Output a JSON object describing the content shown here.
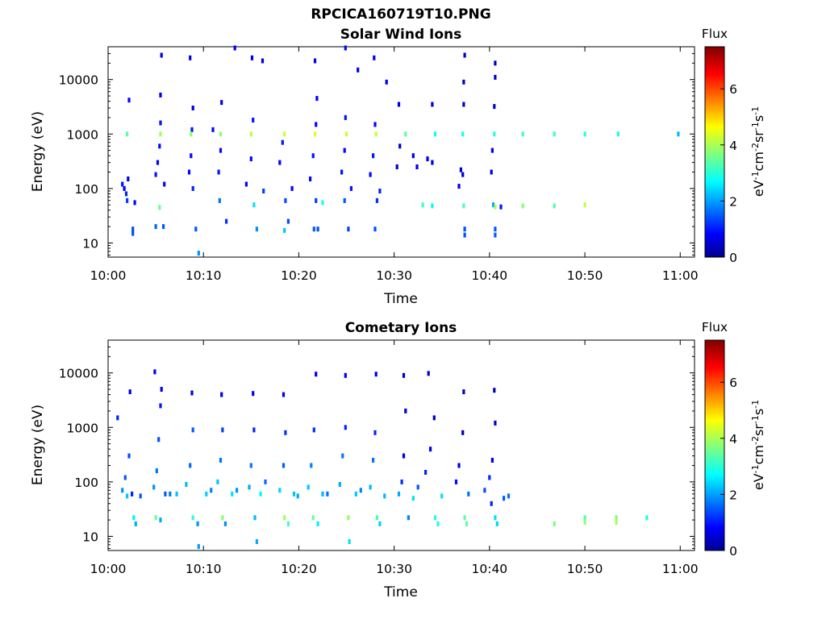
{
  "figure_title": "RPCICA160719T10.PNG",
  "chart_data": [
    {
      "type": "heatmap",
      "title": "Solar Wind Ions",
      "xlabel": "Time",
      "ylabel": "Energy (eV)",
      "x_tick_labels": [
        "10:00",
        "10:10",
        "10:20",
        "10:30",
        "10:40",
        "10:50",
        "11:00"
      ],
      "x_ticks_minutes": [
        0,
        10,
        20,
        30,
        40,
        50,
        60
      ],
      "xlim_minutes": [
        0,
        61.5
      ],
      "y_scale": "log",
      "ylim": [
        5.5,
        40000
      ],
      "y_tick_labels": [
        "10",
        "100",
        "1000",
        "10000"
      ],
      "y_ticks": [
        10,
        100,
        1000,
        10000
      ],
      "colorbar": {
        "label": "Flux",
        "units_text": "eV-1cm-2sr-1s-1",
        "range": [
          0,
          7.5
        ],
        "ticks": [
          0,
          2,
          4,
          6
        ],
        "tick_labels": [
          "0",
          "2",
          "4",
          "6"
        ],
        "colormap": "jet"
      },
      "cells": [
        [
          1.5,
          120,
          1.1
        ],
        [
          1.7,
          100,
          0.9
        ],
        [
          1.9,
          80,
          1.2
        ],
        [
          2.1,
          150,
          0.8
        ],
        [
          2.2,
          4200,
          1.0
        ],
        [
          2.0,
          1000,
          3.5
        ],
        [
          2.0,
          60,
          1.4
        ],
        [
          2.6,
          18,
          1.5
        ],
        [
          2.6,
          15,
          1.5
        ],
        [
          2.8,
          55,
          1.0
        ],
        [
          5.0,
          180,
          1.1
        ],
        [
          5.2,
          300,
          0.9
        ],
        [
          5.4,
          600,
          1.0
        ],
        [
          5.5,
          1600,
          1.1
        ],
        [
          5.5,
          5200,
          0.8
        ],
        [
          5.6,
          28000,
          0.7
        ],
        [
          5.5,
          1000,
          4.0
        ],
        [
          5.4,
          45,
          3.6
        ],
        [
          5.8,
          20,
          1.6
        ],
        [
          5.0,
          20,
          1.7
        ],
        [
          5.9,
          120,
          1.0
        ],
        [
          8.5,
          200,
          1.0
        ],
        [
          8.7,
          400,
          1.0
        ],
        [
          8.8,
          1200,
          1.1
        ],
        [
          8.9,
          3000,
          0.8
        ],
        [
          8.6,
          25000,
          0.7
        ],
        [
          8.7,
          1000,
          3.8
        ],
        [
          9.2,
          18,
          1.6
        ],
        [
          9.5,
          6.5,
          2.0
        ],
        [
          8.9,
          100,
          1.2
        ],
        [
          11.0,
          1200,
          1.0
        ],
        [
          11.6,
          200,
          1.1
        ],
        [
          11.8,
          500,
          1.0
        ],
        [
          11.9,
          3800,
          0.8
        ],
        [
          11.8,
          1000,
          3.9
        ],
        [
          11.7,
          60,
          1.8
        ],
        [
          12.4,
          25,
          1.3
        ],
        [
          13.3,
          38000,
          0.9
        ],
        [
          14.5,
          120,
          1.0
        ],
        [
          15.0,
          350,
          1.0
        ],
        [
          15.2,
          1800,
          1.1
        ],
        [
          15.1,
          25000,
          0.7
        ],
        [
          15.0,
          1000,
          4.2
        ],
        [
          15.3,
          50,
          2.6
        ],
        [
          15.6,
          18,
          2.0
        ],
        [
          16.2,
          22000,
          0.8
        ],
        [
          16.3,
          90,
          1.4
        ],
        [
          18.0,
          300,
          1.0
        ],
        [
          18.3,
          700,
          1.1
        ],
        [
          18.5,
          1000,
          4.3
        ],
        [
          18.6,
          60,
          1.5
        ],
        [
          18.9,
          25,
          1.5
        ],
        [
          18.5,
          17,
          2.4
        ],
        [
          19.3,
          100,
          1.0
        ],
        [
          21.2,
          150,
          1.0
        ],
        [
          21.5,
          400,
          1.1
        ],
        [
          21.8,
          1500,
          1.0
        ],
        [
          21.9,
          4500,
          0.9
        ],
        [
          21.7,
          1000,
          4.4
        ],
        [
          21.8,
          60,
          1.4
        ],
        [
          21.6,
          18,
          1.6
        ],
        [
          22.0,
          18,
          1.5
        ],
        [
          21.7,
          22000,
          0.8
        ],
        [
          22.5,
          55,
          3.0
        ],
        [
          24.5,
          200,
          1.1
        ],
        [
          24.8,
          500,
          1.0
        ],
        [
          24.9,
          2000,
          1.1
        ],
        [
          24.9,
          38000,
          1.0
        ],
        [
          25.0,
          1000,
          4.3
        ],
        [
          24.8,
          60,
          1.6
        ],
        [
          25.2,
          18,
          1.4
        ],
        [
          25.5,
          100,
          1.1
        ],
        [
          26.2,
          15000,
          0.8
        ],
        [
          27.5,
          180,
          1.0
        ],
        [
          27.8,
          400,
          1.1
        ],
        [
          28.0,
          1500,
          1.0
        ],
        [
          27.9,
          25000,
          0.9
        ],
        [
          28.1,
          1000,
          4.3
        ],
        [
          28.2,
          60,
          1.3
        ],
        [
          28.0,
          18,
          1.5
        ],
        [
          28.5,
          90,
          1.2
        ],
        [
          29.2,
          9000,
          0.7
        ],
        [
          30.3,
          250,
          0.7
        ],
        [
          30.6,
          600,
          0.6
        ],
        [
          30.5,
          3500,
          0.7
        ],
        [
          31.2,
          1000,
          3.5
        ],
        [
          32.0,
          400,
          0.7
        ],
        [
          32.4,
          250,
          0.8
        ],
        [
          33.5,
          350,
          0.9
        ],
        [
          34.0,
          300,
          0.8
        ],
        [
          34.0,
          3500,
          0.6
        ],
        [
          34.3,
          1000,
          2.9
        ],
        [
          34.0,
          48,
          2.8
        ],
        [
          33.0,
          50,
          3.2
        ],
        [
          37.0,
          220,
          0.5
        ],
        [
          37.2,
          180,
          0.6
        ],
        [
          36.8,
          110,
          0.9
        ],
        [
          37.3,
          3500,
          0.6
        ],
        [
          37.3,
          9000,
          0.5
        ],
        [
          37.4,
          28000,
          0.5
        ],
        [
          37.2,
          1000,
          3.0
        ],
        [
          37.3,
          48,
          3.4
        ],
        [
          37.4,
          18,
          1.5
        ],
        [
          37.4,
          14,
          1.5
        ],
        [
          40.2,
          200,
          0.7
        ],
        [
          40.3,
          500,
          0.9
        ],
        [
          40.5,
          3200,
          0.7
        ],
        [
          40.6,
          11000,
          0.6
        ],
        [
          40.6,
          20000,
          0.5
        ],
        [
          40.5,
          1000,
          3.1
        ],
        [
          40.4,
          50,
          2.1
        ],
        [
          40.6,
          46,
          4.0
        ],
        [
          41.2,
          46,
          1.1
        ],
        [
          40.6,
          18,
          1.6
        ],
        [
          40.6,
          14,
          1.6
        ],
        [
          43.5,
          1000,
          3.3
        ],
        [
          43.5,
          48,
          3.8
        ],
        [
          46.8,
          1000,
          3.3
        ],
        [
          46.8,
          48,
          3.4
        ],
        [
          50.0,
          1000,
          3.1
        ],
        [
          50.0,
          50,
          4.2
        ],
        [
          53.5,
          1000,
          3.0
        ],
        [
          59.8,
          1000,
          2.3
        ]
      ]
    },
    {
      "type": "heatmap",
      "title": "Cometary Ions",
      "xlabel": "Time",
      "ylabel": "Energy (eV)",
      "x_tick_labels": [
        "10:00",
        "10:10",
        "10:20",
        "10:30",
        "10:40",
        "10:50",
        "11:00"
      ],
      "x_ticks_minutes": [
        0,
        10,
        20,
        30,
        40,
        50,
        60
      ],
      "xlim_minutes": [
        0,
        61.5
      ],
      "y_scale": "log",
      "ylim": [
        5.5,
        40000
      ],
      "y_tick_labels": [
        "10",
        "100",
        "1000",
        "10000"
      ],
      "y_ticks": [
        10,
        100,
        1000,
        10000
      ],
      "colorbar": {
        "label": "Flux",
        "units_text": "eV-1cm-2sr-1s-1",
        "range": [
          0,
          7.5
        ],
        "ticks": [
          0,
          2,
          4,
          6
        ],
        "tick_labels": [
          "0",
          "2",
          "4",
          "6"
        ],
        "colormap": "jet"
      },
      "cells": [
        [
          1.0,
          1500,
          1.2
        ],
        [
          1.5,
          70,
          2.0
        ],
        [
          1.8,
          120,
          1.6
        ],
        [
          2.0,
          55,
          2.4
        ],
        [
          2.2,
          300,
          1.5
        ],
        [
          2.3,
          4500,
          0.8
        ],
        [
          2.5,
          60,
          1.2
        ],
        [
          2.7,
          22,
          2.7
        ],
        [
          2.9,
          17,
          2.2
        ],
        [
          3.4,
          55,
          1.6
        ],
        [
          4.8,
          80,
          2.0
        ],
        [
          5.1,
          160,
          1.8
        ],
        [
          5.3,
          600,
          1.5
        ],
        [
          5.5,
          2500,
          1.1
        ],
        [
          5.6,
          5000,
          0.9
        ],
        [
          4.9,
          10500,
          0.8
        ],
        [
          5.0,
          22,
          3.6
        ],
        [
          5.5,
          20,
          2.2
        ],
        [
          6.0,
          60,
          1.6
        ],
        [
          6.5,
          60,
          1.8
        ],
        [
          7.2,
          60,
          2.4
        ],
        [
          8.2,
          90,
          2.3
        ],
        [
          8.6,
          200,
          1.7
        ],
        [
          8.9,
          900,
          1.6
        ],
        [
          8.8,
          4300,
          0.8
        ],
        [
          8.9,
          22,
          3.1
        ],
        [
          9.4,
          17,
          2.0
        ],
        [
          9.5,
          6.5,
          2.1
        ],
        [
          10.3,
          60,
          2.5
        ],
        [
          10.8,
          70,
          1.9
        ],
        [
          11.5,
          100,
          2.4
        ],
        [
          11.8,
          250,
          1.8
        ],
        [
          12.0,
          900,
          1.4
        ],
        [
          11.9,
          4000,
          0.8
        ],
        [
          12.0,
          22,
          3.8
        ],
        [
          12.3,
          17,
          2.0
        ],
        [
          13.0,
          60,
          2.6
        ],
        [
          13.5,
          70,
          2.0
        ],
        [
          14.8,
          80,
          2.2
        ],
        [
          15.0,
          200,
          1.8
        ],
        [
          15.3,
          900,
          1.2
        ],
        [
          15.2,
          4200,
          0.8
        ],
        [
          15.4,
          22,
          2.3
        ],
        [
          15.6,
          8,
          2.2
        ],
        [
          16.0,
          60,
          2.8
        ],
        [
          16.5,
          100,
          1.7
        ],
        [
          18.0,
          70,
          2.5
        ],
        [
          18.4,
          200,
          1.6
        ],
        [
          18.6,
          800,
          1.3
        ],
        [
          18.4,
          4000,
          0.9
        ],
        [
          18.5,
          22,
          4.0
        ],
        [
          18.9,
          17,
          3.3
        ],
        [
          19.5,
          60,
          2.4
        ],
        [
          19.9,
          55,
          2.2
        ],
        [
          21.0,
          80,
          2.4
        ],
        [
          21.3,
          200,
          1.9
        ],
        [
          21.6,
          900,
          1.3
        ],
        [
          21.8,
          9500,
          0.8
        ],
        [
          21.5,
          22,
          3.6
        ],
        [
          22.0,
          17,
          2.7
        ],
        [
          22.5,
          60,
          2.3
        ],
        [
          23.0,
          60,
          1.8
        ],
        [
          24.3,
          90,
          2.2
        ],
        [
          24.6,
          300,
          1.8
        ],
        [
          24.9,
          1000,
          1.2
        ],
        [
          24.9,
          9000,
          0.9
        ],
        [
          25.2,
          22,
          3.9
        ],
        [
          25.3,
          8,
          2.6
        ],
        [
          26.0,
          60,
          2.4
        ],
        [
          26.5,
          70,
          1.9
        ],
        [
          27.5,
          80,
          2.3
        ],
        [
          27.8,
          250,
          1.8
        ],
        [
          28.0,
          800,
          1.2
        ],
        [
          28.1,
          9500,
          0.8
        ],
        [
          28.2,
          22,
          3.3
        ],
        [
          28.5,
          17,
          2.5
        ],
        [
          29.0,
          55,
          2.3
        ],
        [
          30.5,
          60,
          2.2
        ],
        [
          30.8,
          100,
          1.3
        ],
        [
          31.0,
          300,
          0.7
        ],
        [
          31.2,
          2000,
          0.6
        ],
        [
          31.0,
          9000,
          0.5
        ],
        [
          31.5,
          22,
          1.9
        ],
        [
          32.0,
          50,
          2.6
        ],
        [
          32.5,
          80,
          1.6
        ],
        [
          33.3,
          150,
          1.2
        ],
        [
          33.8,
          400,
          0.9
        ],
        [
          34.2,
          1500,
          0.6
        ],
        [
          33.6,
          9800,
          0.6
        ],
        [
          34.3,
          22,
          3.1
        ],
        [
          34.6,
          17,
          3.0
        ],
        [
          35.0,
          55,
          2.6
        ],
        [
          36.5,
          100,
          1.0
        ],
        [
          36.8,
          200,
          0.8
        ],
        [
          37.2,
          800,
          0.5
        ],
        [
          37.3,
          4500,
          0.5
        ],
        [
          37.4,
          22,
          3.5
        ],
        [
          37.6,
          17,
          3.5
        ],
        [
          37.8,
          60,
          1.8
        ],
        [
          39.5,
          70,
          1.5
        ],
        [
          40.0,
          120,
          1.2
        ],
        [
          40.3,
          250,
          0.8
        ],
        [
          40.6,
          1200,
          0.6
        ],
        [
          40.5,
          4800,
          0.5
        ],
        [
          40.2,
          40,
          1.2
        ],
        [
          40.6,
          22,
          2.6
        ],
        [
          40.8,
          17,
          2.5
        ],
        [
          41.5,
          50,
          1.6
        ],
        [
          42.0,
          55,
          1.8
        ],
        [
          46.8,
          17,
          3.7
        ],
        [
          50.0,
          18,
          3.9
        ],
        [
          50.0,
          22,
          3.4
        ],
        [
          53.3,
          18,
          4.1
        ],
        [
          53.3,
          22,
          3.8
        ],
        [
          56.5,
          22,
          3.0
        ]
      ]
    }
  ]
}
